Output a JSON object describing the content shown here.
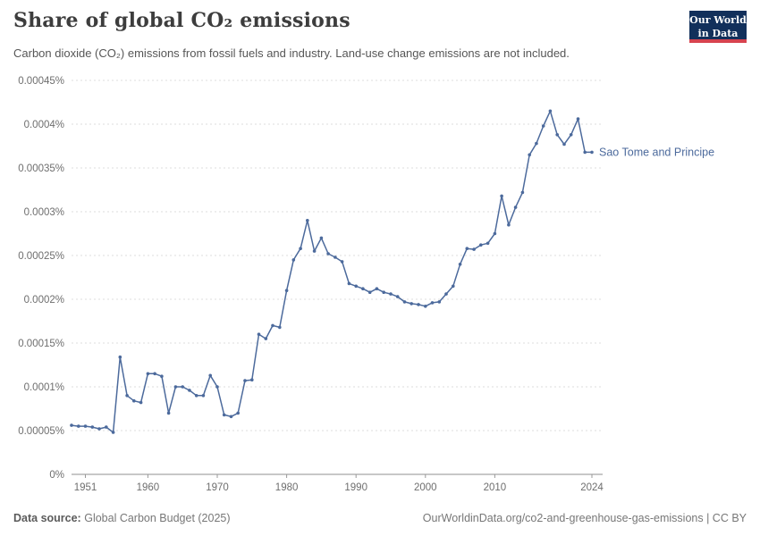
{
  "logo": {
    "line1": "Our World",
    "line2": "in Data"
  },
  "footer": {
    "source_label": "Data source:",
    "source_value": "Global Carbon Budget (2025)",
    "right_text": "OurWorldinData.org/co2-and-greenhouse-gas-emissions | CC BY"
  },
  "chart_data": {
    "type": "line",
    "title": "Share of global CO₂ emissions",
    "subtitle": "Carbon dioxide (CO₂) emissions from fossil fuels and industry. Land-use change emissions are not included.",
    "xlabel": "",
    "ylabel": "",
    "grid": true,
    "xlim": [
      1949,
      2024
    ],
    "ylim": [
      0,
      0.00045
    ],
    "x_ticks": [
      {
        "value": 1951,
        "label": "1951"
      },
      {
        "value": 1960,
        "label": "1960"
      },
      {
        "value": 1970,
        "label": "1970"
      },
      {
        "value": 1980,
        "label": "1980"
      },
      {
        "value": 1990,
        "label": "1990"
      },
      {
        "value": 2000,
        "label": "2000"
      },
      {
        "value": 2010,
        "label": "2010"
      },
      {
        "value": 2024,
        "label": "2024"
      }
    ],
    "y_ticks": [
      {
        "value": 0,
        "label": "0%"
      },
      {
        "value": 5e-05,
        "label": "0.00005%"
      },
      {
        "value": 0.0001,
        "label": "0.0001%"
      },
      {
        "value": 0.00015,
        "label": "0.00015%"
      },
      {
        "value": 0.0002,
        "label": "0.0002%"
      },
      {
        "value": 0.00025,
        "label": "0.00025%"
      },
      {
        "value": 0.0003,
        "label": "0.0003%"
      },
      {
        "value": 0.00035,
        "label": "0.00035%"
      },
      {
        "value": 0.0004,
        "label": "0.0004%"
      },
      {
        "value": 0.00045,
        "label": "0.00045%"
      }
    ],
    "series": [
      {
        "name": "Sao Tome and Principe",
        "color": "#4C6A9C",
        "x_start": 1949,
        "x_step": 1,
        "values": [
          5.6e-05,
          5.5e-05,
          5.5e-05,
          5.4e-05,
          5.2e-05,
          5.4e-05,
          4.8e-05,
          0.000134,
          9e-05,
          8.4e-05,
          8.2e-05,
          0.000115,
          0.000115,
          0.000112,
          7e-05,
          0.0001,
          0.0001,
          9.6e-05,
          9e-05,
          9e-05,
          0.000113,
          0.0001,
          6.8e-05,
          6.6e-05,
          7e-05,
          0.000107,
          0.000108,
          0.00016,
          0.000155,
          0.00017,
          0.000168,
          0.00021,
          0.000245,
          0.000258,
          0.00029,
          0.000255,
          0.00027,
          0.000252,
          0.000248,
          0.000243,
          0.000218,
          0.000215,
          0.000212,
          0.000208,
          0.000212,
          0.000208,
          0.000206,
          0.000203,
          0.000197,
          0.000195,
          0.000194,
          0.000192,
          0.000196,
          0.000197,
          0.000206,
          0.000215,
          0.00024,
          0.000258,
          0.000257,
          0.000262,
          0.000264,
          0.000275,
          0.000318,
          0.000285,
          0.000305,
          0.000322,
          0.000365,
          0.000378,
          0.000398,
          0.000415,
          0.000388,
          0.000377,
          0.000388,
          0.000406,
          0.000368,
          0.000368
        ]
      }
    ]
  }
}
